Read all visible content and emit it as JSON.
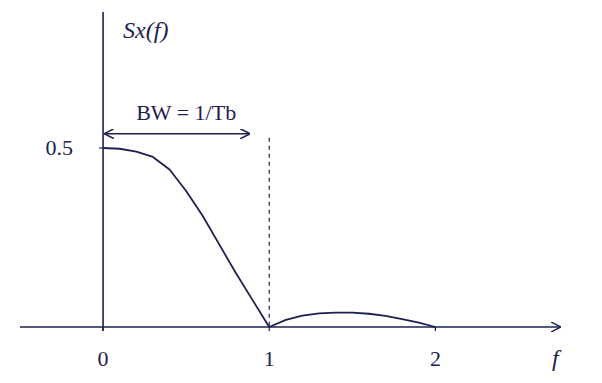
{
  "chart_data": {
    "type": "line",
    "title": "Sx(f)",
    "x_label": "f",
    "x": [
      0,
      0.1,
      0.2,
      0.3,
      0.4,
      0.5,
      0.6,
      0.7,
      0.8,
      0.9,
      1.0,
      1.1,
      1.2,
      1.3,
      1.4,
      1.5,
      1.6,
      1.7,
      1.8,
      1.9,
      2.0
    ],
    "values": [
      0.5,
      0.498,
      0.49,
      0.475,
      0.44,
      0.38,
      0.31,
      0.23,
      0.15,
      0.075,
      0,
      0.02,
      0.032,
      0.038,
      0.04,
      0.04,
      0.037,
      0.031,
      0.022,
      0.012,
      0
    ],
    "color": "#1e2050",
    "xlim": [
      -0.5,
      2.75
    ],
    "ylim": [
      0,
      0.88
    ],
    "xticks": [
      0,
      1,
      2
    ],
    "yticks": [
      0.5
    ],
    "grid": false,
    "annotations": [
      {
        "text": "BW = 1/Tb",
        "x": [
          0,
          1
        ],
        "y": 0.54
      }
    ]
  }
}
